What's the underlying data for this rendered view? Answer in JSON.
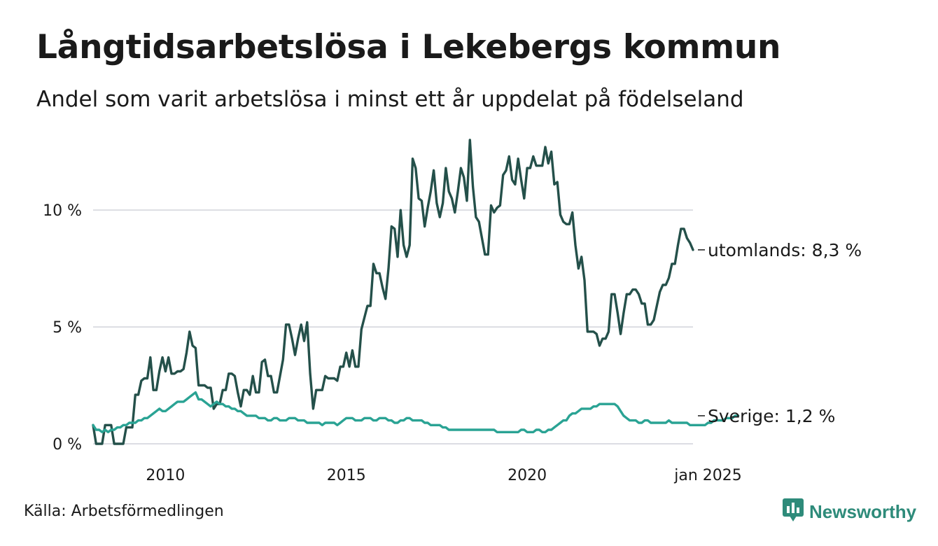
{
  "title": "Långtidsarbetslösa i Lekebergs kommun",
  "subtitle": "Andel som varit arbetslösa i minst ett år uppdelat på födelseland",
  "source": "Källa: Arbetsförmedlingen",
  "brand": {
    "name": "Newsworthy",
    "icon": "newsworthy-logo-icon",
    "color": "#2e8b7a"
  },
  "chart_data": {
    "type": "line",
    "x_start": "2008-01",
    "x_step": "month",
    "ylim": [
      0,
      13
    ],
    "yticks": [
      {
        "value": 0,
        "label": "0 %"
      },
      {
        "value": 5,
        "label": "5 %"
      },
      {
        "value": 10,
        "label": "10 %"
      }
    ],
    "xticks": [
      {
        "date": "2010-01",
        "label": "2010"
      },
      {
        "date": "2015-01",
        "label": "2015"
      },
      {
        "date": "2020-01",
        "label": "2020"
      },
      {
        "date": "2025-01",
        "label": "jan 2025"
      }
    ],
    "grid": true,
    "series": [
      {
        "name": "utomlands",
        "end_label": "utomlands: 8,3 %",
        "color": "#24504a",
        "values": [
          0.8,
          0.0,
          0.0,
          0.0,
          0.8,
          0.8,
          0.8,
          0.0,
          0.0,
          0.0,
          0.0,
          0.7,
          0.7,
          0.7,
          2.1,
          2.1,
          2.7,
          2.8,
          2.8,
          3.7,
          2.3,
          2.3,
          3.1,
          3.7,
          3.1,
          3.7,
          3.0,
          3.0,
          3.1,
          3.1,
          3.2,
          3.9,
          4.8,
          4.2,
          4.1,
          2.5,
          2.5,
          2.5,
          2.4,
          2.4,
          1.5,
          1.7,
          1.7,
          2.3,
          2.3,
          3.0,
          3.0,
          2.9,
          2.2,
          1.6,
          2.3,
          2.3,
          2.1,
          2.9,
          2.2,
          2.2,
          3.5,
          3.6,
          2.9,
          2.9,
          2.2,
          2.2,
          2.9,
          3.6,
          5.1,
          5.1,
          4.5,
          3.8,
          4.5,
          5.1,
          4.4,
          5.2,
          3.0,
          1.5,
          2.3,
          2.3,
          2.3,
          2.9,
          2.8,
          2.8,
          2.8,
          2.7,
          3.3,
          3.3,
          3.9,
          3.3,
          4.0,
          3.3,
          3.3,
          4.9,
          5.4,
          5.9,
          5.9,
          7.7,
          7.3,
          7.3,
          6.7,
          6.2,
          7.5,
          9.3,
          9.2,
          8.0,
          10.0,
          8.5,
          8.0,
          8.5,
          12.2,
          11.8,
          10.5,
          10.4,
          9.3,
          10.1,
          10.8,
          11.7,
          10.3,
          9.7,
          10.3,
          11.8,
          10.8,
          10.5,
          9.9,
          10.8,
          11.8,
          11.4,
          10.4,
          13.0,
          11.0,
          9.7,
          9.5,
          8.8,
          8.1,
          8.1,
          10.2,
          9.9,
          10.1,
          10.2,
          11.5,
          11.7,
          12.3,
          11.3,
          11.1,
          12.2,
          11.3,
          10.5,
          11.8,
          11.8,
          12.3,
          11.9,
          11.9,
          11.9,
          12.7,
          12.0,
          12.5,
          11.1,
          11.2,
          9.8,
          9.5,
          9.4,
          9.4,
          9.9,
          8.5,
          7.5,
          8.0,
          7.0,
          4.8,
          4.8,
          4.8,
          4.7,
          4.2,
          4.5,
          4.5,
          4.8,
          6.4,
          6.4,
          5.6,
          4.7,
          5.6,
          6.4,
          6.4,
          6.6,
          6.6,
          6.4,
          6.0,
          6.0,
          5.1,
          5.1,
          5.3,
          5.9,
          6.5,
          6.8,
          6.8,
          7.1,
          7.7,
          7.7,
          8.5,
          9.2,
          9.2,
          8.8,
          8.6,
          8.3
        ]
      },
      {
        "name": "Sverige",
        "end_label": "Sverige: 1,2 %",
        "color": "#2aa394",
        "values": [
          0.8,
          0.6,
          0.6,
          0.5,
          0.6,
          0.5,
          0.6,
          0.6,
          0.7,
          0.7,
          0.8,
          0.8,
          0.9,
          0.9,
          0.9,
          1.0,
          1.0,
          1.1,
          1.1,
          1.2,
          1.3,
          1.4,
          1.5,
          1.4,
          1.4,
          1.5,
          1.6,
          1.7,
          1.8,
          1.8,
          1.8,
          1.9,
          2.0,
          2.1,
          2.2,
          1.9,
          1.9,
          1.8,
          1.7,
          1.6,
          1.7,
          1.8,
          1.7,
          1.7,
          1.6,
          1.6,
          1.5,
          1.5,
          1.4,
          1.4,
          1.3,
          1.2,
          1.2,
          1.2,
          1.2,
          1.1,
          1.1,
          1.1,
          1.0,
          1.0,
          1.1,
          1.1,
          1.0,
          1.0,
          1.0,
          1.1,
          1.1,
          1.1,
          1.0,
          1.0,
          1.0,
          0.9,
          0.9,
          0.9,
          0.9,
          0.9,
          0.8,
          0.9,
          0.9,
          0.9,
          0.9,
          0.8,
          0.9,
          1.0,
          1.1,
          1.1,
          1.1,
          1.0,
          1.0,
          1.0,
          1.1,
          1.1,
          1.1,
          1.0,
          1.0,
          1.1,
          1.1,
          1.1,
          1.0,
          1.0,
          0.9,
          0.9,
          1.0,
          1.0,
          1.1,
          1.1,
          1.0,
          1.0,
          1.0,
          1.0,
          0.9,
          0.9,
          0.8,
          0.8,
          0.8,
          0.8,
          0.7,
          0.7,
          0.6,
          0.6,
          0.6,
          0.6,
          0.6,
          0.6,
          0.6,
          0.6,
          0.6,
          0.6,
          0.6,
          0.6,
          0.6,
          0.6,
          0.6,
          0.6,
          0.5,
          0.5,
          0.5,
          0.5,
          0.5,
          0.5,
          0.5,
          0.5,
          0.6,
          0.6,
          0.5,
          0.5,
          0.5,
          0.6,
          0.6,
          0.5,
          0.5,
          0.6,
          0.6,
          0.7,
          0.8,
          0.9,
          1.0,
          1.0,
          1.2,
          1.3,
          1.3,
          1.4,
          1.5,
          1.5,
          1.5,
          1.5,
          1.6,
          1.6,
          1.7,
          1.7,
          1.7,
          1.7,
          1.7,
          1.7,
          1.6,
          1.4,
          1.2,
          1.1,
          1.0,
          1.0,
          1.0,
          0.9,
          0.9,
          1.0,
          1.0,
          0.9,
          0.9,
          0.9,
          0.9,
          0.9,
          0.9,
          1.0,
          0.9,
          0.9,
          0.9,
          0.9,
          0.9,
          0.9,
          0.8,
          0.8,
          0.8,
          0.8,
          0.8,
          0.8,
          0.9,
          0.9,
          1.0,
          1.0,
          1.0,
          1.0,
          1.1,
          1.1,
          1.1,
          1.2,
          1.2
        ]
      }
    ]
  }
}
